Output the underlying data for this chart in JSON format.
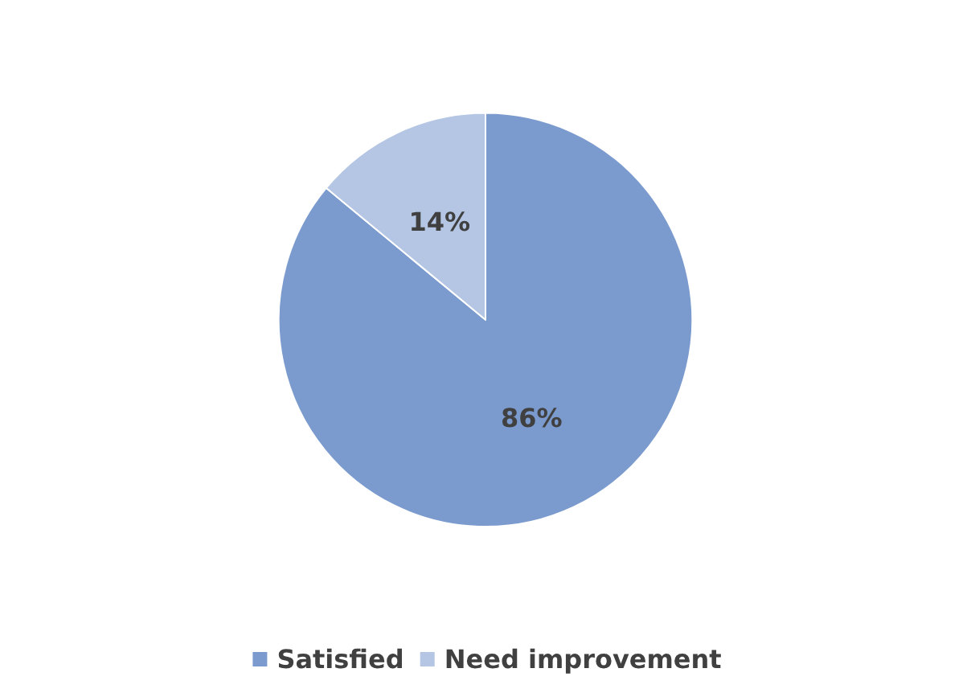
{
  "chart_data": {
    "type": "pie",
    "categories": [
      "Satisfied",
      "Need improvement"
    ],
    "values": [
      86,
      14
    ],
    "value_labels": [
      "86%",
      "14%"
    ],
    "colors": [
      "#7b9bcf",
      "#b4c6e4"
    ],
    "legend": "bottom"
  }
}
